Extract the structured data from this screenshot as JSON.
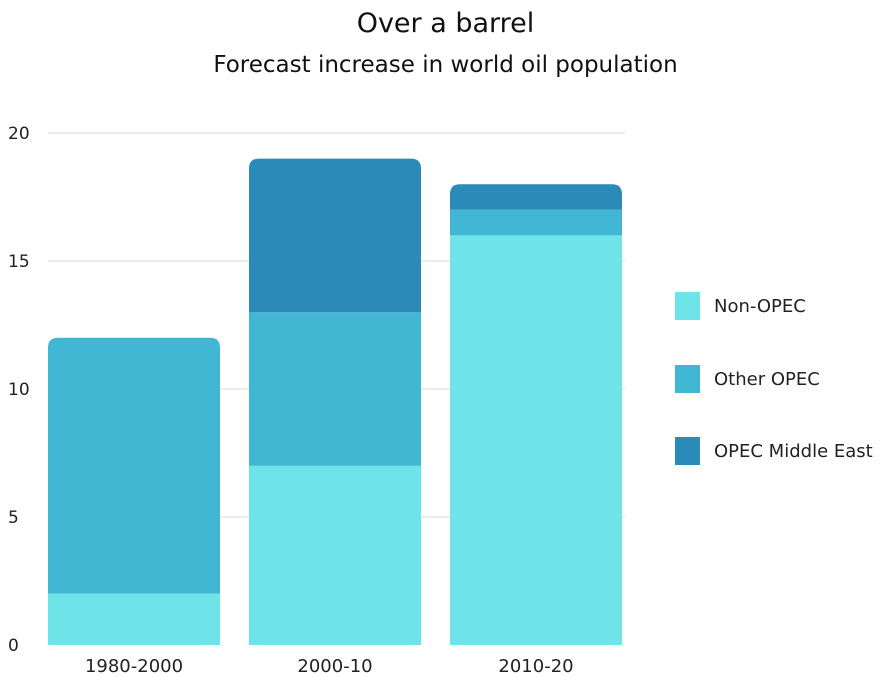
{
  "chart_data": {
    "type": "bar",
    "stacked": true,
    "title": "Over a barrel",
    "subtitle": "Forecast increase in world oil population",
    "xlabel": "",
    "ylabel": "",
    "ylim": [
      0,
      20
    ],
    "yticks": [
      0,
      5,
      10,
      15,
      20
    ],
    "grid": true,
    "legend_position": "right",
    "categories": [
      "1980-2000",
      "2000-10",
      "2010-20"
    ],
    "series": [
      {
        "name": "Non-OPEC",
        "values": [
          2,
          7,
          16
        ],
        "color": "#6ee4e8"
      },
      {
        "name": "Other OPEC",
        "values": [
          10,
          6,
          1
        ],
        "color": "#42b7d4"
      },
      {
        "name": "OPEC Middle East",
        "values": [
          0,
          6,
          1
        ],
        "color": "#2b8ab8"
      }
    ]
  }
}
